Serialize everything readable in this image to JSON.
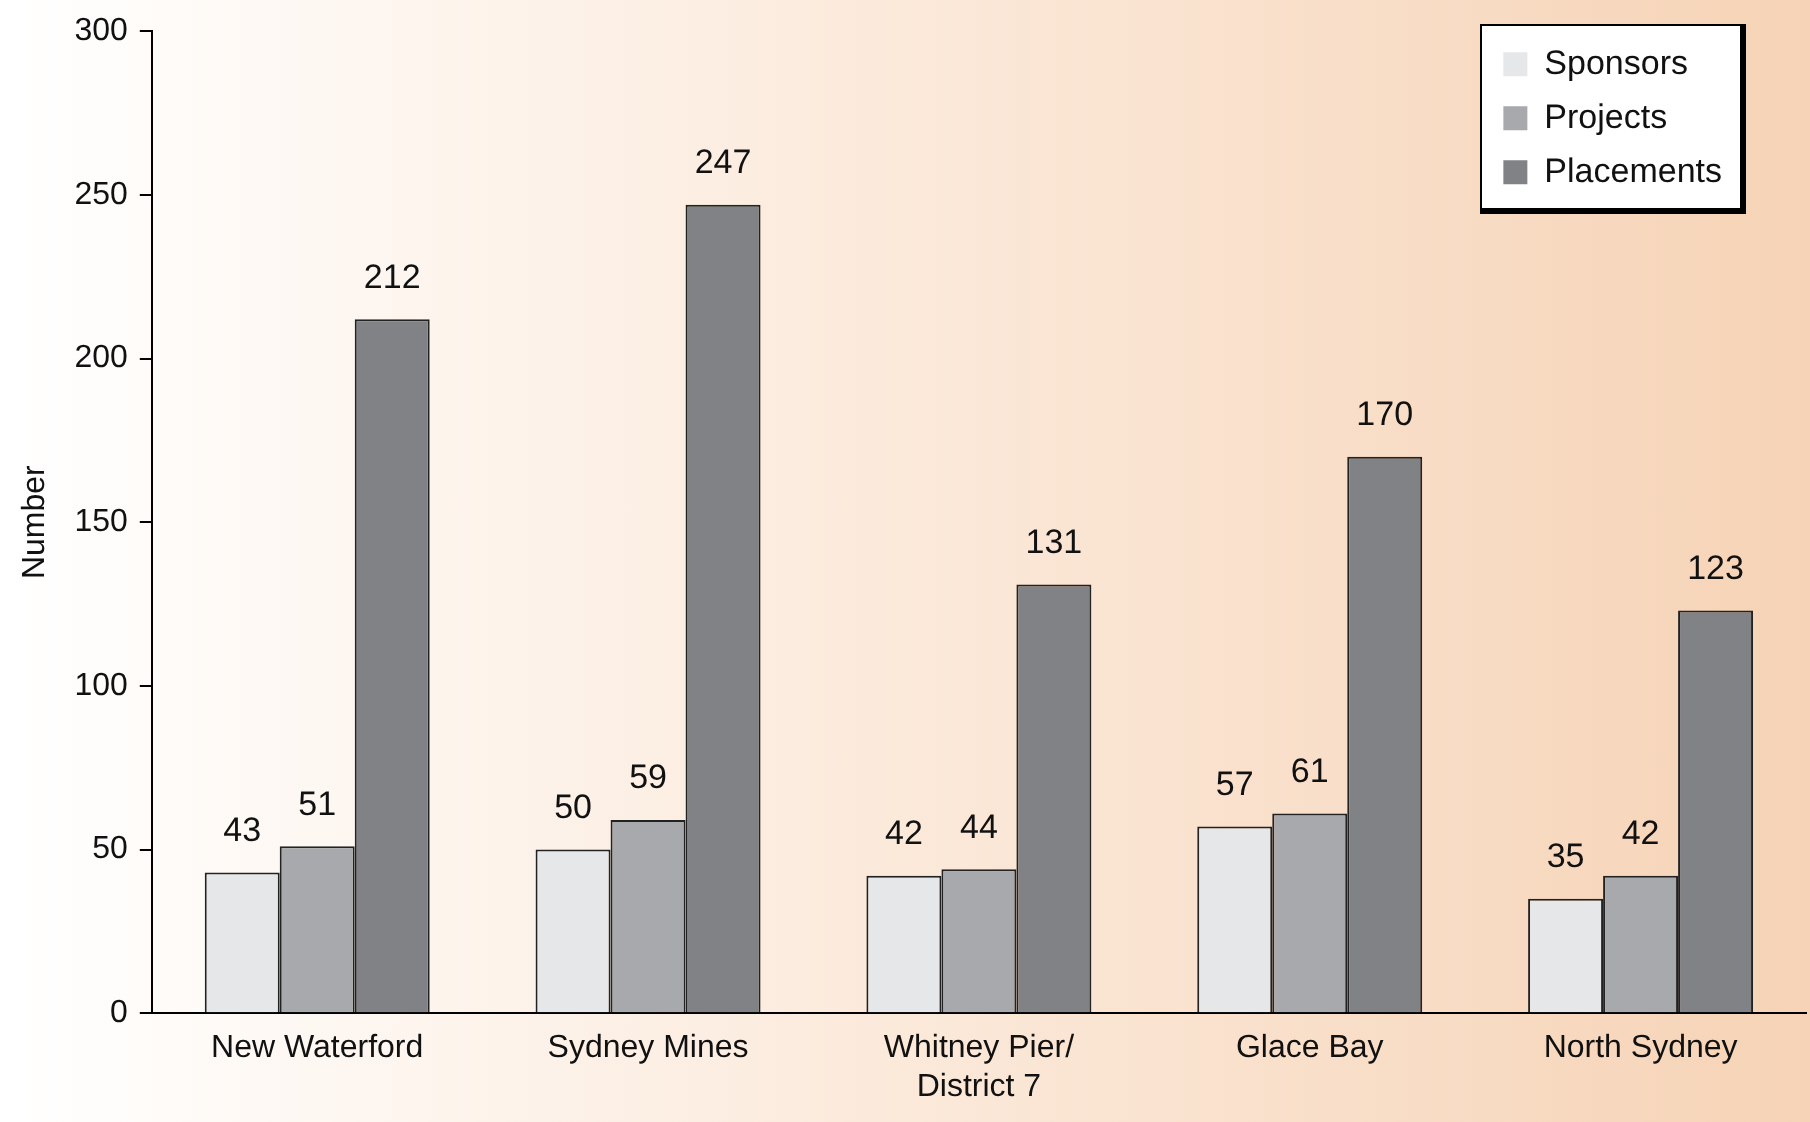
{
  "chart_data": {
    "type": "bar",
    "ylabel": "Number",
    "categories": [
      "New Waterford",
      "Sydney Mines",
      "Whitney Pier/\nDistrict 7",
      "Glace Bay",
      "North Sydney"
    ],
    "series": [
      {
        "name": "Sponsors",
        "color": "#e6e7e9",
        "values": [
          43,
          50,
          42,
          57,
          35
        ]
      },
      {
        "name": "Projects",
        "color": "#a7a9ac",
        "values": [
          51,
          59,
          44,
          61,
          42
        ]
      },
      {
        "name": "Placements",
        "color": "#808285",
        "values": [
          212,
          247,
          131,
          170,
          123
        ]
      }
    ],
    "ylim": [
      0,
      300
    ],
    "yticks": [
      0,
      50,
      100,
      150,
      200,
      250,
      300
    ],
    "grid": false,
    "legend": "top right",
    "data_labels": true
  }
}
